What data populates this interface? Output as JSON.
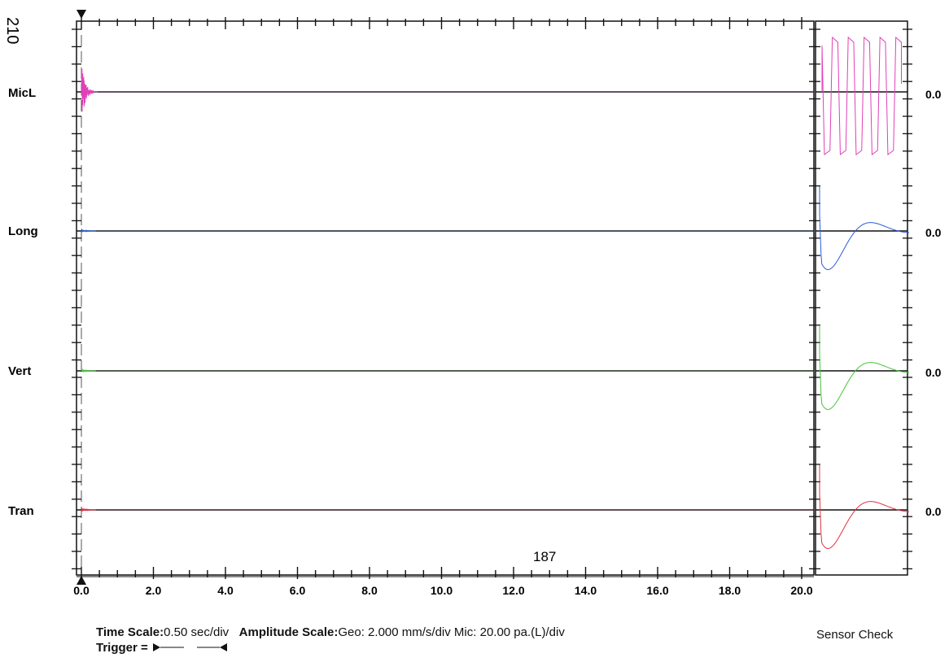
{
  "page_number": "210",
  "annotation": "187",
  "sensor_check_label": "Sensor Check",
  "footer": {
    "time_scale_label": "Time Scale:",
    "time_scale_value": "0.50 sec/div",
    "amplitude_label": "Amplitude Scale:",
    "amplitude_value": "Geo: 2.000 mm/s/div Mic: 20.00 pa.(L)/div",
    "trigger_label": "Trigger ="
  },
  "channel_values": [
    "0.0",
    "0.0",
    "0.0",
    "0.0"
  ],
  "colors": {
    "MicL": "#e040b8",
    "Long": "#2a5bd7",
    "Vert": "#46c43a",
    "Tran": "#e03040",
    "axis": "#111111"
  },
  "chart_data": {
    "type": "line",
    "x": {
      "ticks": [
        0.0,
        2.0,
        4.0,
        6.0,
        8.0,
        10.0,
        12.0,
        14.0,
        16.0,
        18.0,
        20.0
      ],
      "tick_labels": [
        "0.0",
        "2.0",
        "4.0",
        "6.0",
        "8.0",
        "10.0",
        "12.0",
        "14.0",
        "16.0",
        "18.0",
        "20.0"
      ],
      "xlim": [
        0.0,
        20.5
      ],
      "minor_step": 0.5
    },
    "series": [
      {
        "name": "MicL",
        "baseline": 0.0,
        "burst_duration_s": 0.35,
        "peak_divs": 1.9
      },
      {
        "name": "Long",
        "baseline": 0.0,
        "burst_duration_s": 0.3,
        "peak_divs": 0.1
      },
      {
        "name": "Vert",
        "baseline": 0.0,
        "burst_duration_s": 0.3,
        "peak_divs": 0.1
      },
      {
        "name": "Tran",
        "baseline": 0.0,
        "burst_duration_s": 0.3,
        "peak_divs": 0.12
      }
    ],
    "trigger_time": 0.0,
    "sensor_check": {
      "MicL": "square-wave",
      "Long": "damped-pulse",
      "Vert": "damped-pulse",
      "Tran": "damped-pulse"
    }
  }
}
